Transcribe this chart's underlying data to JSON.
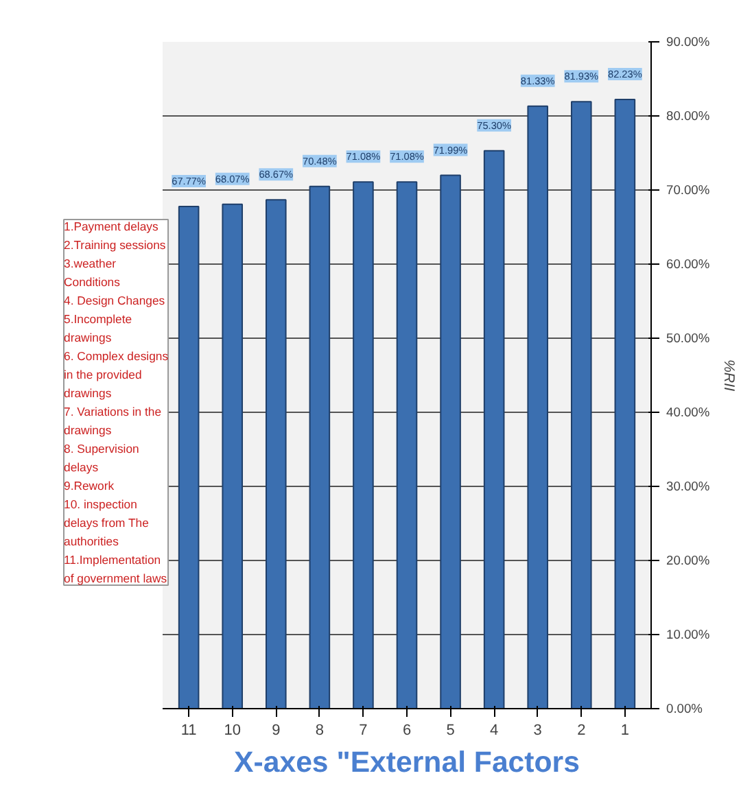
{
  "chart_data": {
    "type": "bar",
    "categories": [
      "11",
      "10",
      "9",
      "8",
      "7",
      "6",
      "5",
      "4",
      "3",
      "2",
      "1"
    ],
    "values": [
      67.77,
      68.07,
      68.67,
      70.48,
      71.08,
      71.08,
      71.99,
      75.3,
      81.33,
      81.93,
      82.23
    ],
    "value_labels": [
      "67.77%",
      "68.07%",
      "68.67%",
      "70.48%",
      "71.08%",
      "71.08%",
      "71.99%",
      "75.30%",
      "81.33%",
      "81.93%",
      "82.23%"
    ],
    "color": "#3b6fb0",
    "xlabel": "X-axes \"External Factors",
    "ylabel": "%RII",
    "ylim": [
      0,
      90
    ],
    "yticks": [
      {
        "value": 0,
        "label": "0.00%"
      },
      {
        "value": 10,
        "label": "10.00%"
      },
      {
        "value": 20,
        "label": "20.00%"
      },
      {
        "value": 30,
        "label": "30.00%"
      },
      {
        "value": 40,
        "label": "40.00%"
      },
      {
        "value": 50,
        "label": "50.00%"
      },
      {
        "value": 60,
        "label": "60.00%"
      },
      {
        "value": 70,
        "label": "70.00%"
      },
      {
        "value": 80,
        "label": "80.00%"
      },
      {
        "value": 90,
        "label": "90.00%"
      }
    ],
    "grid": "y",
    "annotations": [
      "1.Payment delays\n2.Training sessions\n3.weather\nConditions\n4. Design Changes\n5.Incomplete\ndrawings\n6. Complex designs\nin the provided\ndrawings\n7. Variations in the\ndrawings\n8. Supervision\ndelays\n9.Rework\n10. inspection\ndelays from The\nauthorities\n11.Implementation\nof government laws"
    ]
  }
}
